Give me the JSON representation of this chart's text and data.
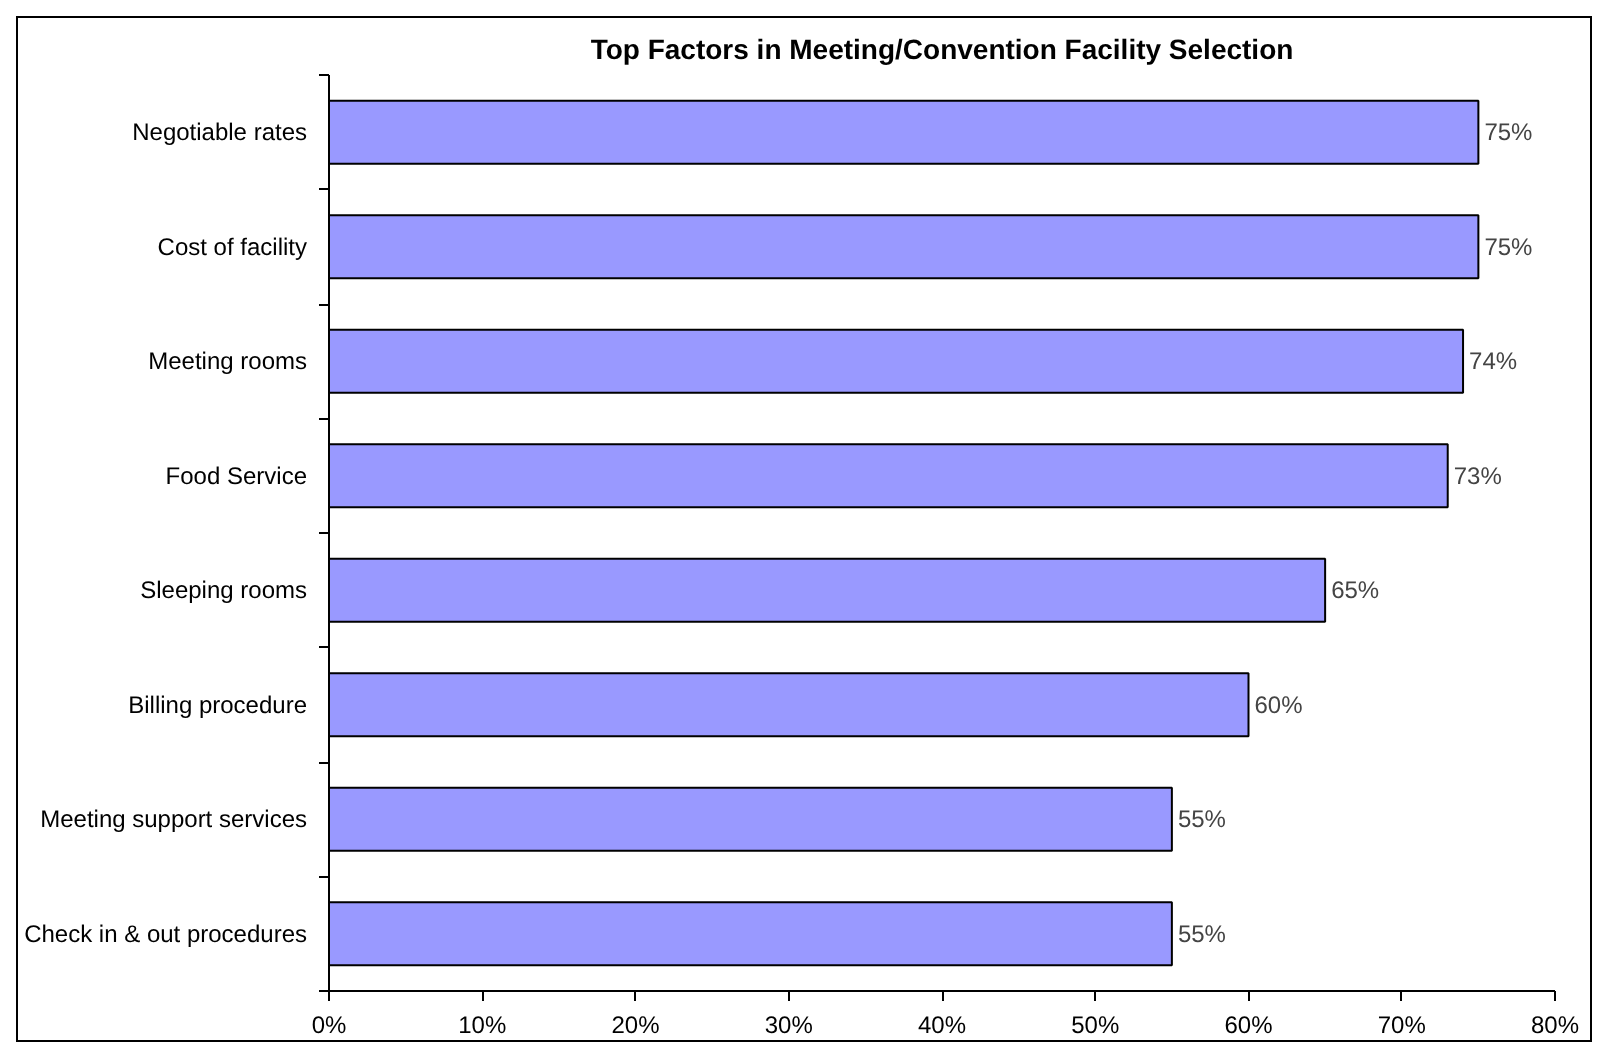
{
  "chart_data": {
    "type": "bar",
    "orientation": "horizontal",
    "title": "Top Factors in Meeting/Convention Facility Selection",
    "categories": [
      "Negotiable rates",
      "Cost of facility",
      "Meeting rooms",
      "Food Service",
      "Sleeping rooms",
      "Billing procedure",
      "Meeting support services",
      "Check in & out procedures"
    ],
    "values": [
      75,
      75,
      74,
      73,
      65,
      60,
      55,
      55
    ],
    "value_labels": [
      "75%",
      "75%",
      "74%",
      "73%",
      "65%",
      "60%",
      "55%",
      "55%"
    ],
    "color": "#9999ff",
    "xlim": [
      0,
      80
    ],
    "xticks": [
      {
        "value": 0,
        "label": "0%"
      },
      {
        "value": 10,
        "label": "10%"
      },
      {
        "value": 20,
        "label": "20%"
      },
      {
        "value": 30,
        "label": "30%"
      },
      {
        "value": 40,
        "label": "40%"
      },
      {
        "value": 50,
        "label": "50%"
      },
      {
        "value": 60,
        "label": "60%"
      },
      {
        "value": 70,
        "label": "70%"
      },
      {
        "value": 80,
        "label": "80%"
      }
    ],
    "grid": false
  }
}
